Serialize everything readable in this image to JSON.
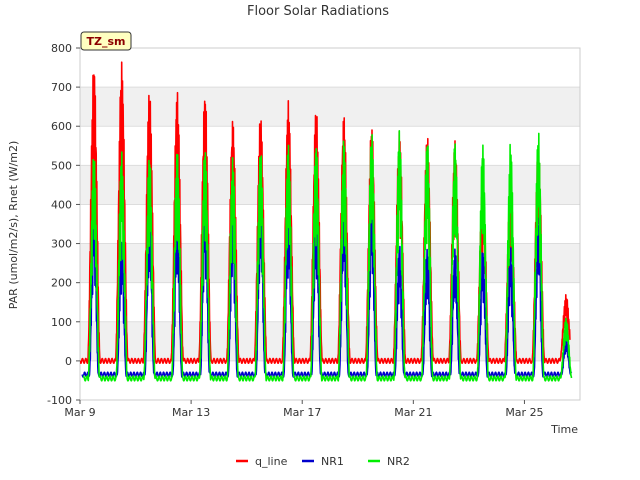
{
  "chart_data": {
    "type": "line",
    "title": "Floor Solar Radiations",
    "xlabel": "Time",
    "ylabel": "PAR (umol/m2/s), Rnet (W/m2)",
    "site_tag": "TZ_sm",
    "xlim": [
      "2022-03-09",
      "2022-03-27"
    ],
    "ylim": [
      -100,
      800
    ],
    "x_ticks": [
      {
        "date": "2022-03-09",
        "label": "Mar 9"
      },
      {
        "date": "2022-03-13",
        "label": "Mar 13"
      },
      {
        "date": "2022-03-17",
        "label": "Mar 17"
      },
      {
        "date": "2022-03-21",
        "label": "Mar 21"
      },
      {
        "date": "2022-03-25",
        "label": "Mar 25"
      }
    ],
    "y_ticks": [
      -100,
      0,
      100,
      200,
      300,
      400,
      500,
      600,
      700,
      800
    ],
    "grid": true,
    "banded_background": true,
    "legend_position": "bottom",
    "series": [
      {
        "name": "q_line",
        "color": "#ff0000",
        "night_value": 0,
        "days": [
          "2022-03-09",
          "2022-03-10",
          "2022-03-11",
          "2022-03-12",
          "2022-03-13",
          "2022-03-14",
          "2022-03-15",
          "2022-03-16",
          "2022-03-17",
          "2022-03-18",
          "2022-03-19",
          "2022-03-20",
          "2022-03-21",
          "2022-03-22",
          "2022-03-23",
          "2022-03-24",
          "2022-03-25",
          "2022-03-26"
        ],
        "daily_peak": [
          760,
          765,
          695,
          690,
          685,
          618,
          632,
          665,
          650,
          630,
          605,
          590,
          580,
          565,
          468,
          450,
          550,
          170
        ]
      },
      {
        "name": "NR1",
        "color": "#0000cc",
        "night_value": -35,
        "days": [
          "2022-03-09",
          "2022-03-10",
          "2022-03-11",
          "2022-03-12",
          "2022-03-13",
          "2022-03-14",
          "2022-03-15",
          "2022-03-16",
          "2022-03-17",
          "2022-03-18",
          "2022-03-19",
          "2022-03-20",
          "2022-03-21",
          "2022-03-22",
          "2022-03-23",
          "2022-03-24",
          "2022-03-25",
          "2022-03-26"
        ],
        "daily_peak": [
          400,
          320,
          400,
          400,
          430,
          390,
          425,
          410,
          405,
          415,
          415,
          300,
          290,
          290,
          290,
          290,
          375,
          60
        ]
      },
      {
        "name": "NR2",
        "color": "#00ee00",
        "night_value": -45,
        "days": [
          "2022-03-09",
          "2022-03-10",
          "2022-03-11",
          "2022-03-12",
          "2022-03-13",
          "2022-03-14",
          "2022-03-15",
          "2022-03-16",
          "2022-03-17",
          "2022-03-18",
          "2022-03-19",
          "2022-03-20",
          "2022-03-21",
          "2022-03-22",
          "2022-03-23",
          "2022-03-24",
          "2022-03-25",
          "2022-03-26"
        ],
        "daily_peak": [
          535,
          535,
          530,
          540,
          550,
          520,
          545,
          555,
          560,
          570,
          590,
          590,
          570,
          565,
          560,
          560,
          590,
          110
        ]
      }
    ]
  }
}
